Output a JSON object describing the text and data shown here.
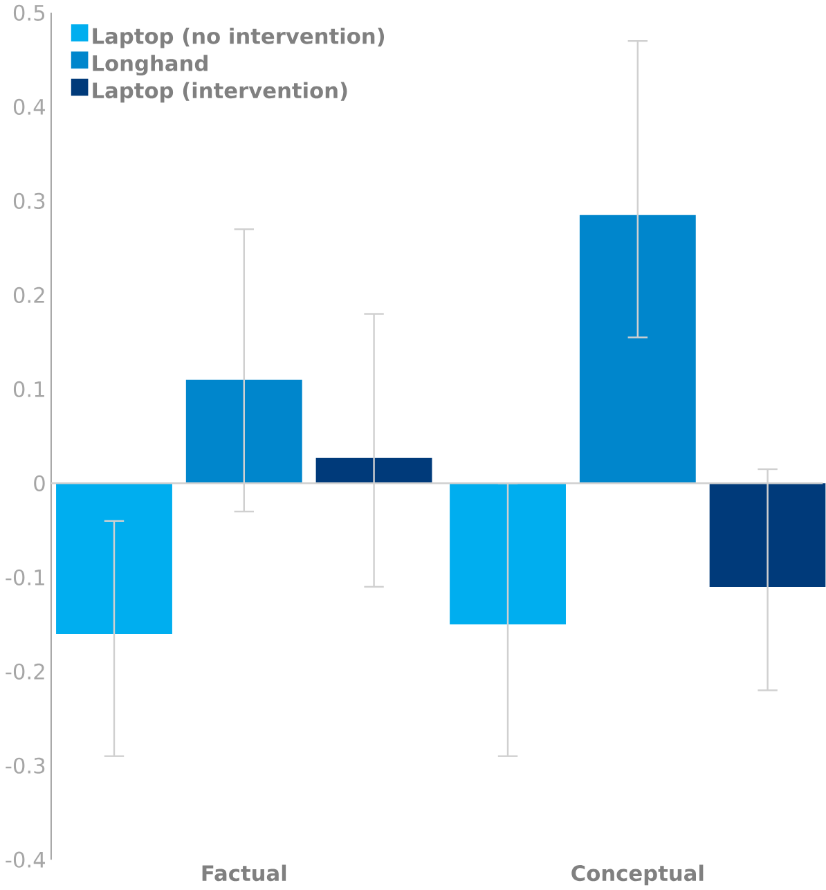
{
  "chart_data": {
    "type": "bar",
    "categories": [
      "Factual",
      "Conceptual"
    ],
    "series": [
      {
        "name": "Laptop (no intervention)",
        "color": "#00aeef",
        "values": [
          -0.16,
          -0.15
        ],
        "errors": [
          [
            -0.29,
            -0.04
          ],
          [
            -0.29,
            0.0
          ]
        ]
      },
      {
        "name": "Longhand",
        "color": "#0086cc",
        "values": [
          0.11,
          0.285
        ],
        "errors": [
          [
            -0.03,
            0.27
          ],
          [
            0.155,
            0.47
          ]
        ]
      },
      {
        "name": "Laptop (intervention)",
        "color": "#003a7a",
        "values": [
          0.027,
          -0.11
        ],
        "errors": [
          [
            -0.11,
            0.18
          ],
          [
            -0.22,
            0.015
          ]
        ]
      }
    ],
    "ylim": [
      -0.4,
      0.5
    ],
    "yticks": [
      -0.4,
      -0.3,
      -0.2,
      -0.1,
      0,
      0.1,
      0.2,
      0.3,
      0.4,
      0.5
    ],
    "legend": "top left"
  }
}
